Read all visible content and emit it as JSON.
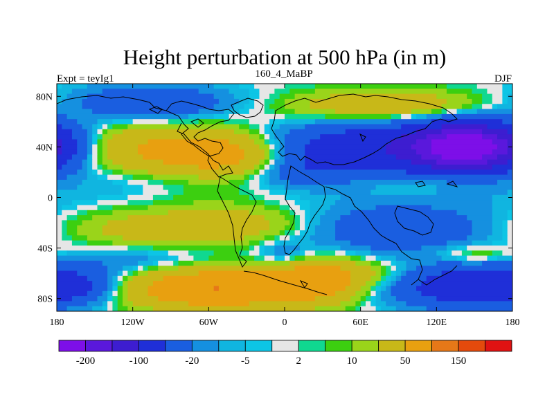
{
  "chart_data": {
    "type": "heatmap",
    "title": "Height perturbation at 500 hPa (in m)",
    "left_label": "Expt = teyIg1",
    "center_label": "160_4_MaBP",
    "right_label": "DJF",
    "projection": "cylindrical equidistant",
    "xlim": [
      -180,
      180
    ],
    "ylim": [
      -90,
      90
    ],
    "x_ticks": [
      {
        "value": -180,
        "label": "180"
      },
      {
        "value": -120,
        "label": "120W"
      },
      {
        "value": -60,
        "label": "60W"
      },
      {
        "value": 0,
        "label": "0"
      },
      {
        "value": 60,
        "label": "60E"
      },
      {
        "value": 120,
        "label": "120E"
      },
      {
        "value": 180,
        "label": "180"
      }
    ],
    "y_ticks": [
      {
        "value": 80,
        "label": "80N"
      },
      {
        "value": 40,
        "label": "40N"
      },
      {
        "value": 0,
        "label": "0"
      },
      {
        "value": -40,
        "label": "40S"
      },
      {
        "value": -80,
        "label": "80S"
      }
    ],
    "colorbar": {
      "levels": [
        -200,
        -150,
        -100,
        -50,
        -20,
        -10,
        -5,
        -2,
        2,
        5,
        10,
        20,
        50,
        100,
        150,
        200
      ],
      "colors": [
        "#7d0fe8",
        "#5a18dc",
        "#3d1dd0",
        "#1f2fd8",
        "#1a5ee0",
        "#1590e0",
        "#10b5e0",
        "#0dc5e5",
        "#e6e6e6",
        "#10d890",
        "#3ccf10",
        "#9ad41a",
        "#c8b818",
        "#e8a010",
        "#e67818",
        "#e44a0c",
        "#e01212"
      ],
      "labels": [
        {
          "value": -200,
          "text": "-200"
        },
        {
          "value": -100,
          "text": "-100"
        },
        {
          "value": -20,
          "text": "-20"
        },
        {
          "value": -5,
          "text": "-5"
        },
        {
          "value": 2,
          "text": "2"
        },
        {
          "value": 10,
          "text": "10"
        },
        {
          "value": 50,
          "text": "50"
        },
        {
          "value": 150,
          "text": "150"
        }
      ]
    },
    "anomaly_centers": [
      {
        "lon": -100,
        "lat": 38,
        "value": 65,
        "sx": 60,
        "sy": 14
      },
      {
        "lon": -40,
        "lat": 32,
        "value": 45,
        "sx": 30,
        "sy": 10
      },
      {
        "lon": 80,
        "lat": 72,
        "value": 45,
        "sx": 55,
        "sy": 9
      },
      {
        "lon": -105,
        "lat": 75,
        "value": -45,
        "sx": 45,
        "sy": 10
      },
      {
        "lon": 145,
        "lat": 40,
        "value": -220,
        "sx": 30,
        "sy": 12
      },
      {
        "lon": 120,
        "lat": 38,
        "value": -60,
        "sx": 70,
        "sy": 17
      },
      {
        "lon": 40,
        "lat": 40,
        "value": -45,
        "sx": 45,
        "sy": 13
      },
      {
        "lon": 15,
        "lat": 22,
        "value": -30,
        "sx": 30,
        "sy": 10
      },
      {
        "lon": 35,
        "lat": 32,
        "value": 12,
        "sx": 8,
        "sy": 5
      },
      {
        "lon": -120,
        "lat": 10,
        "value": -10,
        "sx": 60,
        "sy": 9
      },
      {
        "lon": 120,
        "lat": 12,
        "value": 14,
        "sx": 45,
        "sy": 6
      },
      {
        "lon": -60,
        "lat": 5,
        "value": 8,
        "sx": 40,
        "sy": 8
      },
      {
        "lon": -110,
        "lat": -25,
        "value": 35,
        "sx": 80,
        "sy": 11
      },
      {
        "lon": -30,
        "lat": -20,
        "value": 20,
        "sx": 40,
        "sy": 10
      },
      {
        "lon": 100,
        "lat": -25,
        "value": -45,
        "sx": 70,
        "sy": 14
      },
      {
        "lon": 0,
        "lat": -45,
        "value": -20,
        "sx": 15,
        "sy": 8
      },
      {
        "lon": 150,
        "lat": -45,
        "value": 25,
        "sx": 25,
        "sy": 6
      },
      {
        "lon": -115,
        "lat": -50,
        "value": -18,
        "sx": 40,
        "sy": 8
      },
      {
        "lon": 140,
        "lat": -70,
        "value": -80,
        "sx": 40,
        "sy": 12
      },
      {
        "lon": -165,
        "lat": -70,
        "value": -50,
        "sx": 25,
        "sy": 10
      },
      {
        "lon": -55,
        "lat": -72,
        "value": 100,
        "sx": 50,
        "sy": 11
      },
      {
        "lon": 25,
        "lat": -65,
        "value": 65,
        "sx": 25,
        "sy": 12
      },
      {
        "lon": 70,
        "lat": -60,
        "value": 20,
        "sx": 30,
        "sy": 8
      }
    ]
  }
}
